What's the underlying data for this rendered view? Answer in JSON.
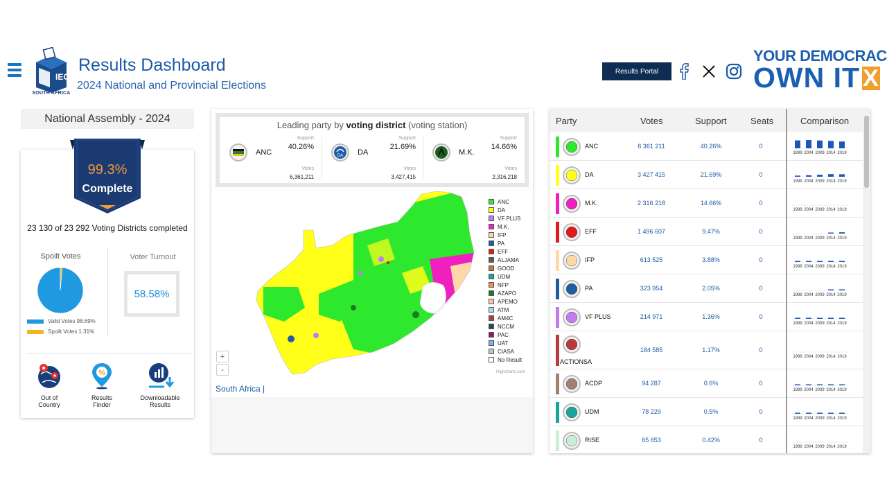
{
  "header": {
    "title": "Results Dashboard",
    "subtitle": "2024 National and Provincial Elections",
    "logo_text": "IEC",
    "logo_caption": "SOUTH AFRICA",
    "portal_button": "Results Portal",
    "slogan_line1": "YOUR DEMOCRACY",
    "slogan_line2": "OWN IT",
    "slogan_x": "X"
  },
  "left": {
    "heading": "National Assembly - 2024",
    "complete_pct": "99.3%",
    "complete_label": "Complete",
    "districts": "23 130 of 23 292 Voting Districts completed",
    "spoilt_title": "Spoilt Votes",
    "turnout_title": "Voter Turnout",
    "turnout_value": "58.58%",
    "valid_label": "Valid Votes 98.69%",
    "spoilt_label": "Spoilt Votes 1.31%",
    "valid_pct": 98.69,
    "spoilt_pct": 1.31,
    "valid_color": "#1f9ae0",
    "spoilt_color": "#f5b324",
    "tools": [
      {
        "label1": "Out of",
        "label2": "Country",
        "icon": "globe-pin-icon"
      },
      {
        "label1": "Results",
        "label2": "Finder",
        "icon": "percent-pin-icon"
      },
      {
        "label1": "Downloadable",
        "label2": "Results",
        "icon": "download-chart-icon"
      }
    ]
  },
  "leading": {
    "title_pre": "Leading party by ",
    "title_bold": "voting district",
    "title_post": " (voting station)",
    "support_label": "Support",
    "votes_label": "Votes",
    "parties": [
      {
        "name": "ANC",
        "support": "40.26%",
        "votes": "6,361,211",
        "color": "#2e7d32"
      },
      {
        "name": "DA",
        "support": "21.69%",
        "votes": "3,427,415",
        "color": "#1e5ea8"
      },
      {
        "name": "M.K.",
        "support": "14.66%",
        "votes": "2,316,218",
        "color": "#1b5e20"
      }
    ]
  },
  "map": {
    "legend": [
      {
        "label": "ANC",
        "color": "#2ee82e"
      },
      {
        "label": "DA",
        "color": "#ffff1a"
      },
      {
        "label": "VF PLUS",
        "color": "#c27bf0"
      },
      {
        "label": "M.K.",
        "color": "#f01fc0"
      },
      {
        "label": "IFP",
        "color": "#ffd8a8"
      },
      {
        "label": "PA",
        "color": "#1f5fa0"
      },
      {
        "label": "EFF",
        "color": "#e01b1b"
      },
      {
        "label": "ALJAMA",
        "color": "#5a5a5a"
      },
      {
        "label": "GOOD",
        "color": "#c8733a"
      },
      {
        "label": "UDM",
        "color": "#18a39b"
      },
      {
        "label": "NFP",
        "color": "#f4895f"
      },
      {
        "label": "AZAPO",
        "color": "#1c7a24"
      },
      {
        "label": "APEMO",
        "color": "#f2c9a8"
      },
      {
        "label": "ATM",
        "color": "#a9d4f2"
      },
      {
        "label": "AM4C",
        "color": "#b73b3b"
      },
      {
        "label": "NCCM",
        "color": "#254a52"
      },
      {
        "label": "PAC",
        "color": "#8e1a6c"
      },
      {
        "label": "UAT",
        "color": "#72b5e8"
      },
      {
        "label": "CIASA",
        "color": "#b9c9c2"
      },
      {
        "label": "No Result",
        "color": "#ffffff"
      }
    ],
    "zoom_in": "+",
    "zoom_out": "-",
    "credit": "Highcharts.com",
    "breadcrumb": "South Africa |"
  },
  "table": {
    "headers": {
      "party": "Party",
      "votes": "Votes",
      "support": "Support",
      "seats": "Seats",
      "comparison": "Comparison"
    },
    "years": [
      "1999",
      "2004",
      "2009",
      "2014",
      "2019"
    ],
    "rows": [
      {
        "party": "ANC",
        "votes": "6 361 211",
        "support": "40.26%",
        "seats": "0",
        "color": "#2ee82e",
        "history": [
          66.4,
          69.7,
          65.9,
          62.2,
          57.5
        ]
      },
      {
        "party": "DA",
        "votes": "3 427 415",
        "support": "21.69%",
        "seats": "0",
        "color": "#ffff1a",
        "history": [
          9.6,
          12.4,
          16.7,
          22.2,
          20.8
        ]
      },
      {
        "party": "M.K.",
        "votes": "2 316 218",
        "support": "14.66%",
        "seats": "0",
        "color": "#f01fc0",
        "history": [
          0,
          0,
          0,
          0,
          0
        ]
      },
      {
        "party": "EFF",
        "votes": "1 496 607",
        "support": "9.47%",
        "seats": "0",
        "color": "#e01b1b",
        "history": [
          0,
          0,
          0,
          6.4,
          10.8
        ]
      },
      {
        "party": "IFP",
        "votes": "613 525",
        "support": "3.88%",
        "seats": "0",
        "color": "#ffd8a8",
        "history": [
          8.6,
          7.0,
          4.6,
          2.4,
          3.4
        ]
      },
      {
        "party": "PA",
        "votes": "323 954",
        "support": "2.05%",
        "seats": "0",
        "color": "#1f5fa0",
        "history": [
          0,
          0,
          0,
          0.2,
          0.1
        ]
      },
      {
        "party": "VF PLUS",
        "votes": "214 971",
        "support": "1.36%",
        "seats": "0",
        "color": "#c27bf0",
        "history": [
          0.8,
          0.9,
          0.8,
          0.9,
          2.4
        ]
      },
      {
        "party": "ACTIONSA",
        "votes": "184 585",
        "support": "1.17%",
        "seats": "0",
        "color": "#b73b3b",
        "history": [
          0,
          0,
          0,
          0,
          0
        ]
      },
      {
        "party": "ACDP",
        "votes": "94 287",
        "support": "0.6%",
        "seats": "0",
        "color": "#a08070",
        "history": [
          1.4,
          1.6,
          0.8,
          0.6,
          0.8
        ]
      },
      {
        "party": "UDM",
        "votes": "78 229",
        "support": "0.5%",
        "seats": "0",
        "color": "#18a39b",
        "history": [
          3.4,
          2.3,
          0.8,
          1.0,
          0.5
        ]
      },
      {
        "party": "RISE",
        "votes": "65 653",
        "support": "0.42%",
        "seats": "0",
        "color": "#c8f0d8",
        "history": [
          0,
          0,
          0,
          0,
          0
        ]
      }
    ]
  }
}
